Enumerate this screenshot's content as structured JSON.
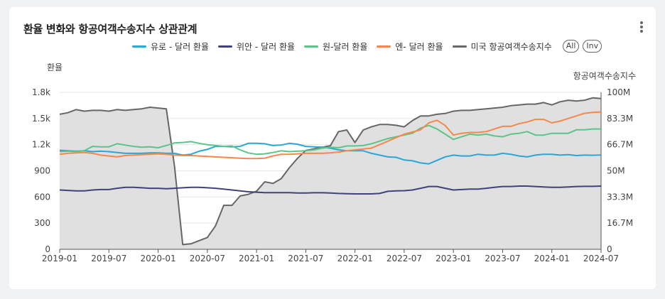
{
  "title": "환율 변화와 항공여객수송지수 상관관계",
  "legend_buttons": {
    "all": "All",
    "inv": "Inv"
  },
  "chart_data": {
    "type": "line",
    "title": "환율 변화와 항공여객수송지수 상관관계",
    "ylabel_left": "환율",
    "ylabel_right": "항공여객수송지수",
    "ylim_left": [
      0,
      1800
    ],
    "ylim_right": [
      0,
      100000000
    ],
    "yticks_left": [
      "0",
      "300",
      "600",
      "900",
      "1.2k",
      "1.5k",
      "1.8k"
    ],
    "yticks_right": [
      "0",
      "16.7M",
      "33.3M",
      "50M",
      "66.7M",
      "83.3M",
      "100M"
    ],
    "x_ticks": [
      "2019-01",
      "2019-07",
      "2020-01",
      "2020-07",
      "2021-01",
      "2021-07",
      "2022-01",
      "2022-07",
      "2023-01",
      "2023-07",
      "2024-01",
      "2024-07"
    ],
    "grid": true,
    "legend_position": "top-right",
    "x": [
      "2019-01",
      "2019-02",
      "2019-03",
      "2019-04",
      "2019-05",
      "2019-06",
      "2019-07",
      "2019-08",
      "2019-09",
      "2019-10",
      "2019-11",
      "2019-12",
      "2020-01",
      "2020-02",
      "2020-03",
      "2020-04",
      "2020-05",
      "2020-06",
      "2020-07",
      "2020-08",
      "2020-09",
      "2020-10",
      "2020-11",
      "2020-12",
      "2021-01",
      "2021-02",
      "2021-03",
      "2021-04",
      "2021-05",
      "2021-06",
      "2021-07",
      "2021-08",
      "2021-09",
      "2021-10",
      "2021-11",
      "2021-12",
      "2022-01",
      "2022-02",
      "2022-03",
      "2022-04",
      "2022-05",
      "2022-06",
      "2022-07",
      "2022-08",
      "2022-09",
      "2022-10",
      "2022-11",
      "2022-12",
      "2023-01",
      "2023-02",
      "2023-03",
      "2023-04",
      "2023-05",
      "2023-06",
      "2023-07",
      "2023-08",
      "2023-09",
      "2023-10",
      "2023-11",
      "2023-12",
      "2024-01",
      "2024-02",
      "2024-03",
      "2024-04",
      "2024-05",
      "2024-06",
      "2024-07"
    ],
    "series": [
      {
        "name": "유로 - 달러 환율",
        "axis": "left",
        "color": "#2aa7d8",
        "values": [
          1135,
          1130,
          1125,
          1130,
          1120,
          1125,
          1120,
          1110,
          1100,
          1100,
          1100,
          1105,
          1105,
          1100,
          1100,
          1080,
          1090,
          1125,
          1145,
          1180,
          1180,
          1175,
          1180,
          1215,
          1215,
          1210,
          1190,
          1195,
          1215,
          1205,
          1180,
          1175,
          1170,
          1160,
          1140,
          1130,
          1130,
          1130,
          1100,
          1080,
          1060,
          1055,
          1025,
          1015,
          990,
          980,
          1020,
          1060,
          1080,
          1070,
          1070,
          1090,
          1080,
          1080,
          1100,
          1090,
          1070,
          1060,
          1080,
          1090,
          1090,
          1080,
          1085,
          1075,
          1080,
          1078,
          1082
        ]
      },
      {
        "name": "위안 - 달러 환율",
        "axis": "left",
        "color": "#3f4379",
        "values": [
          680,
          675,
          670,
          670,
          680,
          685,
          685,
          700,
          710,
          710,
          705,
          700,
          700,
          695,
          700,
          705,
          710,
          710,
          705,
          700,
          690,
          680,
          670,
          660,
          655,
          650,
          650,
          650,
          650,
          645,
          645,
          648,
          648,
          645,
          640,
          638,
          635,
          635,
          635,
          640,
          665,
          670,
          672,
          680,
          700,
          720,
          720,
          700,
          680,
          685,
          690,
          690,
          700,
          710,
          720,
          720,
          725,
          725,
          720,
          715,
          710,
          710,
          715,
          720,
          722,
          722,
          725
        ]
      },
      {
        "name": "원-달러 환율",
        "axis": "left",
        "color": "#5cc488",
        "values": [
          1120,
          1125,
          1120,
          1130,
          1180,
          1175,
          1175,
          1210,
          1195,
          1180,
          1170,
          1175,
          1165,
          1190,
          1220,
          1225,
          1235,
          1215,
          1200,
          1190,
          1180,
          1185,
          1140,
          1105,
          1090,
          1095,
          1110,
          1130,
          1120,
          1125,
          1130,
          1140,
          1160,
          1170,
          1165,
          1185,
          1185,
          1190,
          1210,
          1240,
          1270,
          1290,
          1310,
          1330,
          1390,
          1420,
          1380,
          1320,
          1260,
          1290,
          1320,
          1310,
          1320,
          1300,
          1290,
          1320,
          1330,
          1350,
          1310,
          1310,
          1330,
          1330,
          1330,
          1370,
          1370,
          1380,
          1380
        ]
      },
      {
        "name": "엔- 달러 환율",
        "axis": "left",
        "color": "#f5884a",
        "values": [
          1090,
          1100,
          1105,
          1110,
          1100,
          1080,
          1070,
          1060,
          1075,
          1080,
          1085,
          1090,
          1095,
          1090,
          1080,
          1075,
          1075,
          1070,
          1065,
          1060,
          1055,
          1050,
          1045,
          1040,
          1040,
          1045,
          1070,
          1090,
          1090,
          1095,
          1100,
          1100,
          1100,
          1105,
          1115,
          1130,
          1140,
          1150,
          1160,
          1200,
          1240,
          1280,
          1320,
          1345,
          1370,
          1450,
          1480,
          1420,
          1310,
          1330,
          1340,
          1340,
          1350,
          1380,
          1410,
          1410,
          1440,
          1460,
          1490,
          1490,
          1450,
          1470,
          1500,
          1530,
          1560,
          1570,
          1575
        ]
      },
      {
        "name": "미국 항공여객수송지수",
        "axis": "right",
        "color": "#666666",
        "fill": "#e0e0e0",
        "values": [
          86000000,
          87000000,
          89000000,
          88000000,
          88500000,
          88500000,
          88000000,
          89000000,
          88500000,
          89000000,
          89500000,
          90500000,
          90000000,
          89500000,
          53000000,
          3000000,
          3500000,
          5500000,
          7500000,
          15000000,
          28000000,
          28000000,
          34000000,
          35000000,
          37000000,
          43000000,
          42000000,
          45000000,
          52000000,
          58000000,
          63000000,
          64000000,
          65000000,
          66000000,
          75000000,
          76000000,
          68000000,
          76000000,
          78000000,
          79500000,
          79500000,
          79000000,
          78000000,
          82000000,
          85000000,
          85000000,
          86000000,
          86500000,
          88000000,
          88500000,
          88500000,
          89000000,
          89500000,
          90000000,
          90500000,
          91500000,
          92000000,
          92500000,
          92500000,
          93500000,
          92000000,
          94000000,
          95000000,
          94500000,
          95000000,
          96500000,
          96000000
        ]
      }
    ]
  }
}
